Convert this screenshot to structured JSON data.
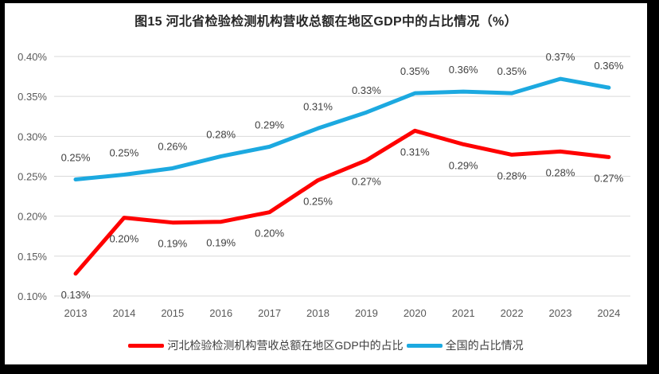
{
  "frame": {
    "border_color": "#000000",
    "surface_color": "#ffffff"
  },
  "chart_data": {
    "type": "line",
    "title": "图15 河北省检验检测机构营收总额在地区GDP中的占比情况（%）",
    "categories": [
      "2013",
      "2014",
      "2015",
      "2016",
      "2017",
      "2018",
      "2019",
      "2020",
      "2021",
      "2022",
      "2023",
      "2024"
    ],
    "series": [
      {
        "id": "hebei",
        "name": "河北检验检测机构营收总额在地区GDP中的占比",
        "color": "#FF0000",
        "values": [
          0.13,
          0.2,
          0.19,
          0.19,
          0.2,
          0.25,
          0.27,
          0.31,
          0.29,
          0.28,
          0.28,
          0.27
        ],
        "labels": [
          "0.13%",
          "0.20%",
          "0.19%",
          "0.19%",
          "0.20%",
          "0.25%",
          "0.27%",
          "0.31%",
          "0.29%",
          "0.28%",
          "0.28%",
          "0.27%"
        ],
        "plotted": [
          0.128,
          0.198,
          0.192,
          0.193,
          0.205,
          0.245,
          0.27,
          0.307,
          0.29,
          0.277,
          0.281,
          0.274
        ],
        "label_position": "below"
      },
      {
        "id": "national",
        "name": "全国的占比情况",
        "color": "#1CA9E0",
        "values": [
          0.25,
          0.25,
          0.26,
          0.28,
          0.29,
          0.31,
          0.33,
          0.35,
          0.36,
          0.35,
          0.37,
          0.36
        ],
        "labels": [
          "0.25%",
          "0.25%",
          "0.26%",
          "0.28%",
          "0.29%",
          "0.31%",
          "0.33%",
          "0.35%",
          "0.36%",
          "0.35%",
          "0.37%",
          "0.36%"
        ],
        "plotted": [
          0.246,
          0.252,
          0.26,
          0.275,
          0.287,
          0.31,
          0.33,
          0.354,
          0.356,
          0.354,
          0.372,
          0.361
        ],
        "label_position": "above"
      }
    ],
    "y_ticks": [
      "0.40%",
      "0.35%",
      "0.30%",
      "0.25%",
      "0.20%",
      "0.15%",
      "0.10%"
    ],
    "ylim": [
      0.1,
      0.4
    ],
    "grid": true,
    "legend_position": "bottom",
    "grid_color": "#D9D9D9",
    "axis_color": "#595959",
    "label_color": "#404040"
  }
}
